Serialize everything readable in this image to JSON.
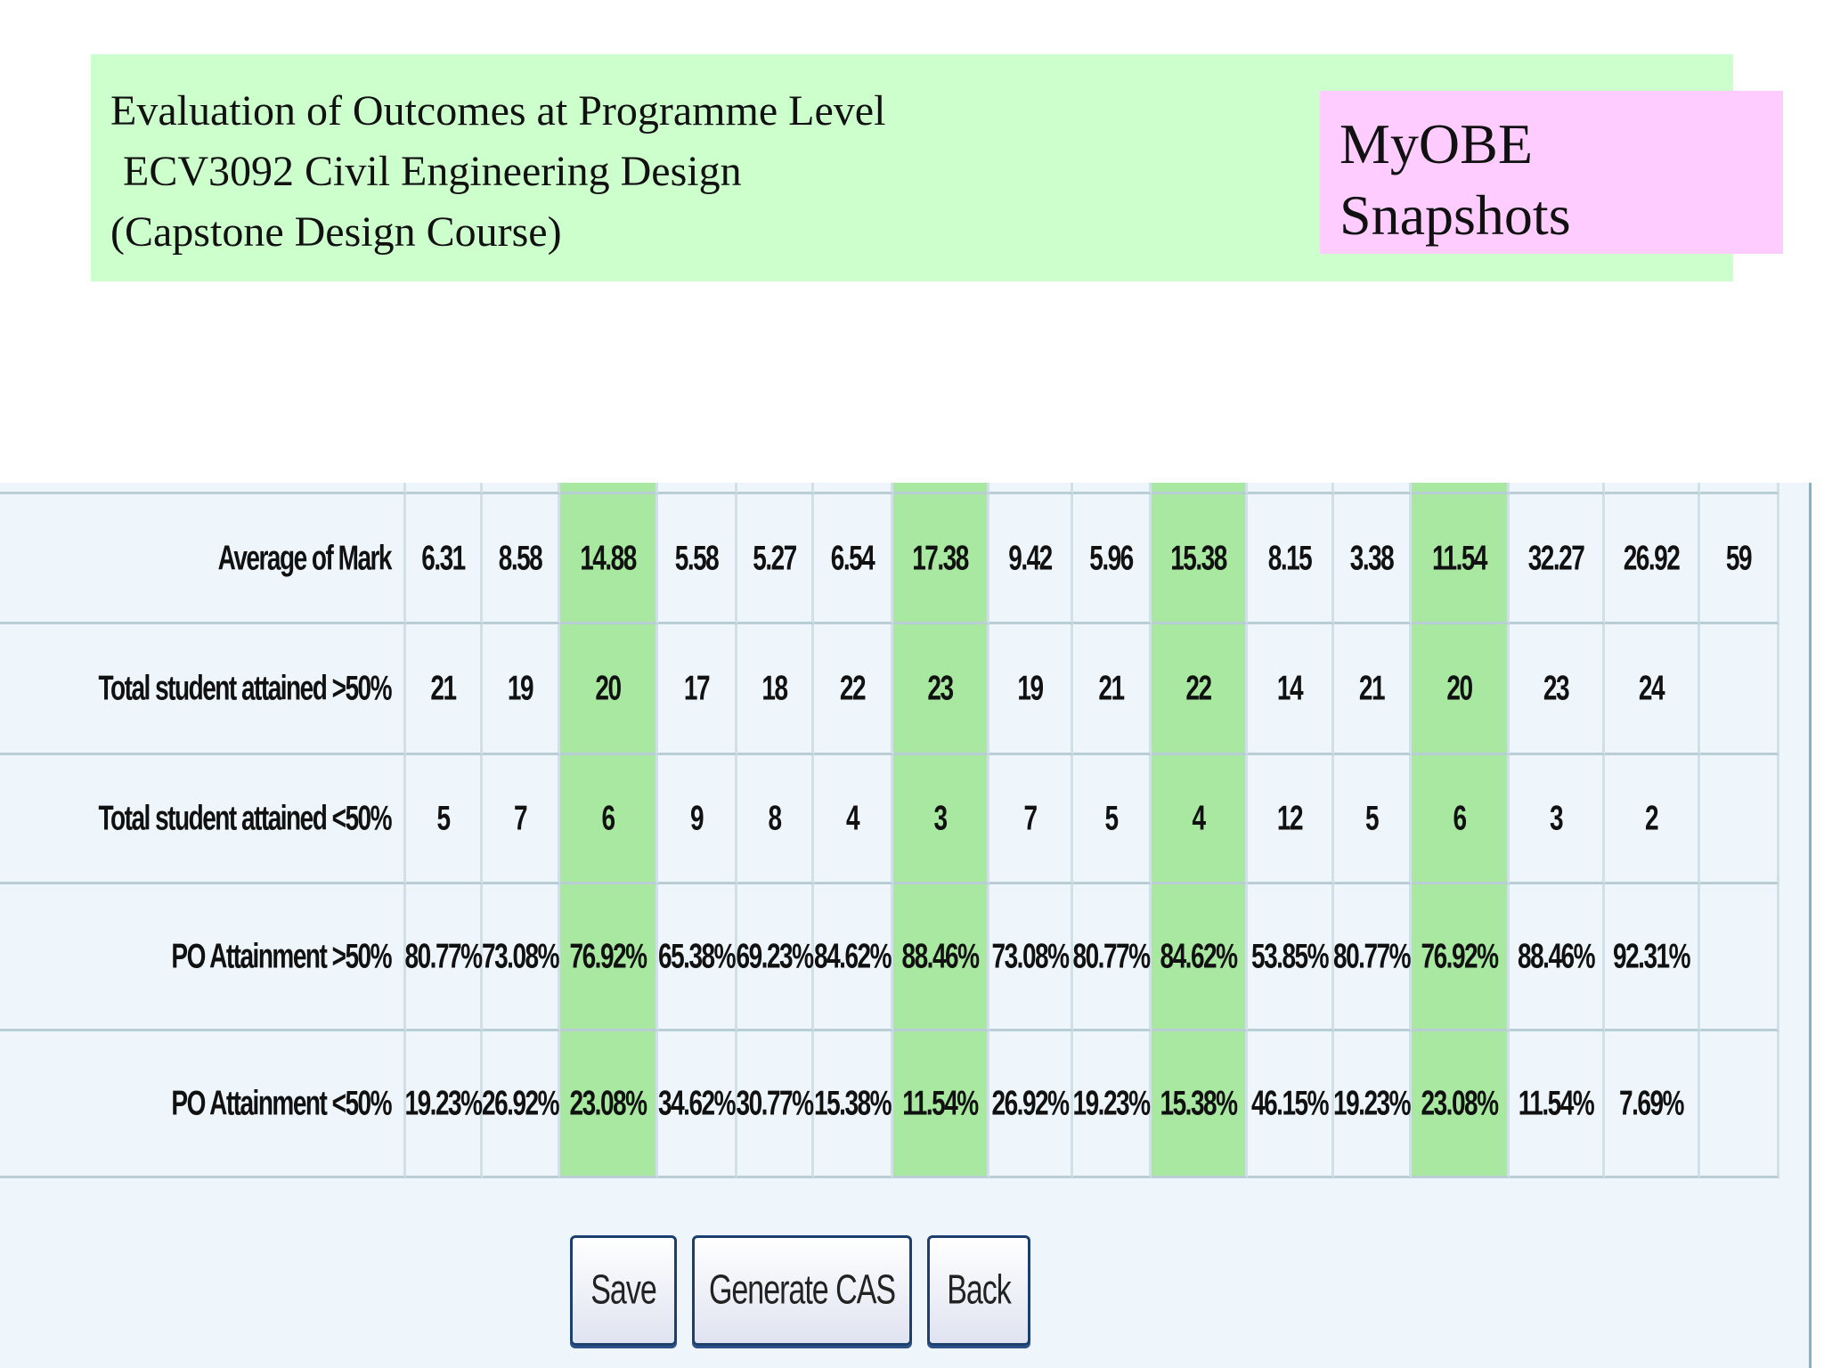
{
  "header": {
    "title_lines": [
      "Evaluation of Outcomes at Programme Level",
      "ECV3092 Civil Engineering Design",
      "(Capstone Design Course)"
    ],
    "badge_lines": [
      "MyOBE",
      "Snapshots"
    ]
  },
  "table": {
    "highlight_columns": [
      2,
      6,
      9,
      12
    ],
    "highlight_color": "#a8e8a0",
    "rows": [
      {
        "label": "Average of Mark",
        "cells": [
          6.31,
          8.58,
          14.88,
          5.58,
          5.27,
          6.54,
          17.38,
          9.42,
          5.96,
          15.38,
          8.15,
          3.38,
          11.54,
          32.27,
          26.92,
          59
        ]
      },
      {
        "label": "Total student attained >50%",
        "cells": [
          21,
          19,
          20,
          17,
          18,
          22,
          23,
          19,
          21,
          22,
          14,
          21,
          20,
          23,
          24,
          null
        ]
      },
      {
        "label": "Total student attained <50%",
        "cells": [
          5,
          7,
          6,
          9,
          8,
          4,
          3,
          7,
          5,
          4,
          12,
          5,
          6,
          3,
          2,
          null
        ]
      },
      {
        "label": "PO Attainment >50%",
        "cells": [
          "80.77%",
          "73.08%",
          "76.92%",
          "65.38%",
          "69.23%",
          "84.62%",
          "88.46%",
          "73.08%",
          "80.77%",
          "84.62%",
          "53.85%",
          "80.77%",
          "76.92%",
          "88.46%",
          "92.31%",
          null
        ]
      },
      {
        "label": "PO Attainment <50%",
        "cells": [
          "19.23%",
          "26.92%",
          "23.08%",
          "34.62%",
          "30.77%",
          "15.38%",
          "11.54%",
          "26.92%",
          "19.23%",
          "15.38%",
          "46.15%",
          "19.23%",
          "23.08%",
          "11.54%",
          "7.69%",
          null
        ]
      }
    ]
  },
  "buttons": [
    "Save",
    "Generate CAS",
    "Back"
  ]
}
